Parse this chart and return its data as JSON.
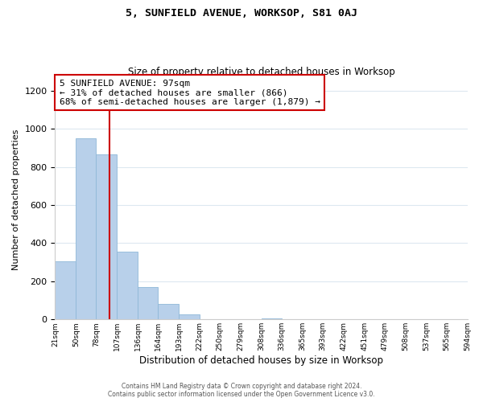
{
  "title": "5, SUNFIELD AVENUE, WORKSOP, S81 0AJ",
  "subtitle": "Size of property relative to detached houses in Worksop",
  "xlabel": "Distribution of detached houses by size in Worksop",
  "ylabel": "Number of detached properties",
  "bar_values": [
    305,
    950,
    865,
    355,
    170,
    80,
    25,
    0,
    0,
    0,
    5,
    0,
    0,
    0,
    0,
    0,
    0,
    0,
    0,
    0
  ],
  "bin_labels": [
    "21sqm",
    "50sqm",
    "78sqm",
    "107sqm",
    "136sqm",
    "164sqm",
    "193sqm",
    "222sqm",
    "250sqm",
    "279sqm",
    "308sqm",
    "336sqm",
    "365sqm",
    "393sqm",
    "422sqm",
    "451sqm",
    "479sqm",
    "508sqm",
    "537sqm",
    "565sqm",
    "594sqm"
  ],
  "bin_edges": [
    21,
    50,
    78,
    107,
    136,
    164,
    193,
    222,
    250,
    279,
    308,
    336,
    365,
    393,
    422,
    451,
    479,
    508,
    537,
    565,
    594
  ],
  "bar_color": "#b8d0ea",
  "bar_edge_color": "#8fb8d8",
  "vline_x": 97,
  "vline_color": "#cc0000",
  "ylim": [
    0,
    1260
  ],
  "yticks": [
    0,
    200,
    400,
    600,
    800,
    1000,
    1200
  ],
  "annotation_text": "5 SUNFIELD AVENUE: 97sqm\n← 31% of detached houses are smaller (866)\n68% of semi-detached houses are larger (1,879) →",
  "annotation_box_color": "#ffffff",
  "annotation_border_color": "#cc0000",
  "footer1": "Contains HM Land Registry data © Crown copyright and database right 2024.",
  "footer2": "Contains public sector information licensed under the Open Government Licence v3.0.",
  "background_color": "#ffffff",
  "grid_color": "#dde8f0"
}
